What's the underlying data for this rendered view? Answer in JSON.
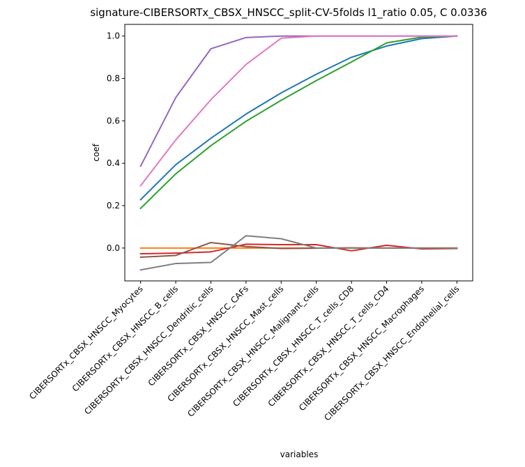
{
  "chart_data": {
    "type": "line",
    "title": "signature-CIBERSORTx_CBSX_HNSCC_split-CV-5folds l1_ratio 0.05, C 0.0336",
    "xlabel": "variables",
    "ylabel": "coef",
    "ylim": [
      -0.155,
      1.055
    ],
    "yticks": [
      "0.0",
      "0.2",
      "0.4",
      "0.6",
      "0.8",
      "1.0"
    ],
    "ytick_values": [
      0.0,
      0.2,
      0.4,
      0.6,
      0.8,
      1.0
    ],
    "categories": [
      "CIBERSORTx_CBSX_HNSCC_Myocytes",
      "CIBERSORTx_CBSX_HNSCC_B_cells",
      "CIBERSORTx_CBSX_HNSCC_Dendritic_cells",
      "CIBERSORTx_CBSX_HNSCC_CAFs",
      "CIBERSORTx_CBSX_HNSCC_Mast_cells",
      "CIBERSORTx_CBSX_HNSCC_Malignant_cells",
      "CIBERSORTx_CBSX_HNSCC_T_cells_CD8",
      "CIBERSORTx_CBSX_HNSCC_T_cells_CD4",
      "CIBERSORTx_CBSX_HNSCC_Macrophages",
      "CIBERSORTx_CBSX_HNSCC_Endothelial_cells"
    ],
    "grid": false,
    "series": [
      {
        "color": "#1f77b4",
        "values": [
          0.228,
          0.393,
          0.518,
          0.632,
          0.732,
          0.82,
          0.9,
          0.953,
          0.988,
          1.0
        ]
      },
      {
        "color": "#ff7f0e",
        "values": [
          0.0,
          0.0,
          0.0,
          0.0,
          0.0,
          0.0,
          0.0,
          0.0,
          0.0,
          0.0
        ]
      },
      {
        "color": "#2ca02c",
        "values": [
          0.187,
          0.35,
          0.483,
          0.598,
          0.697,
          0.79,
          0.878,
          0.968,
          0.995,
          1.0
        ]
      },
      {
        "color": "#d62728",
        "values": [
          -0.027,
          -0.024,
          -0.018,
          0.018,
          0.016,
          0.016,
          -0.013,
          0.013,
          -0.004,
          -0.002
        ]
      },
      {
        "color": "#9467bd",
        "values": [
          0.386,
          0.71,
          0.94,
          0.993,
          1.0,
          1.0,
          1.0,
          1.0,
          1.0,
          1.0
        ]
      },
      {
        "color": "#8c564b",
        "values": [
          -0.043,
          -0.035,
          0.026,
          0.007,
          -0.002,
          -0.001,
          0.001,
          0.0,
          0.0,
          0.0
        ]
      },
      {
        "color": "#e377c2",
        "values": [
          0.294,
          0.51,
          0.7,
          0.866,
          0.99,
          1.0,
          1.0,
          1.0,
          1.0,
          1.0
        ]
      },
      {
        "color": "#7f7f7f",
        "values": [
          -0.103,
          -0.073,
          -0.068,
          0.058,
          0.044,
          0.0,
          0.0,
          0.0,
          0.0,
          0.0
        ]
      }
    ]
  }
}
